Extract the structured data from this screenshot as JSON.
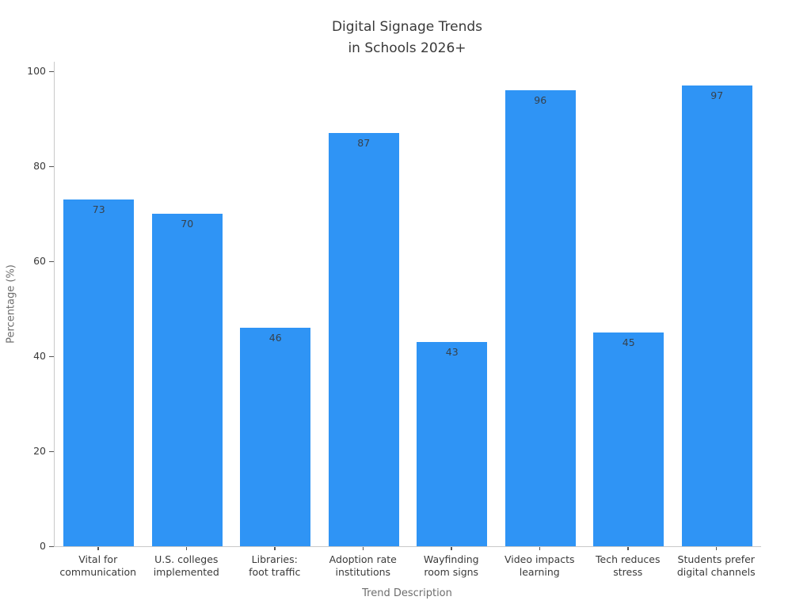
{
  "figure": {
    "title_lines": "Digital Signage Trends\nin Schools 2026+"
  },
  "chart_data": {
    "type": "bar",
    "title": "Digital Signage Trends in Schools 2026+",
    "xlabel": "Trend Description",
    "ylabel": "Percentage (%)",
    "categories": [
      "Vital for\ncommunication",
      "U.S. colleges\nimplemented",
      "Libraries:\nfoot traffic",
      "Adoption rate\ninstitutions",
      "Wayfinding\nroom signs",
      "Video impacts\nlearning",
      "Tech reduces\nstress",
      "Students prefer\ndigital channels"
    ],
    "values": [
      73,
      70,
      46,
      87,
      43,
      96,
      45,
      97
    ],
    "yticks": [
      0,
      20,
      40,
      60,
      80,
      100
    ],
    "ylim": [
      0,
      102
    ],
    "grid": false,
    "legend": "none",
    "bar_width_fraction": 0.8,
    "colors": {
      "bar": "#2f94f5",
      "bar_value_label": "#37414b",
      "tick_label": "#3a3a3a",
      "axis_label": "#6e6e6e",
      "title": "#3a3a3a",
      "spine": "#c9c9c9",
      "tick_mark": "#555555",
      "background": "#ffffff"
    }
  }
}
